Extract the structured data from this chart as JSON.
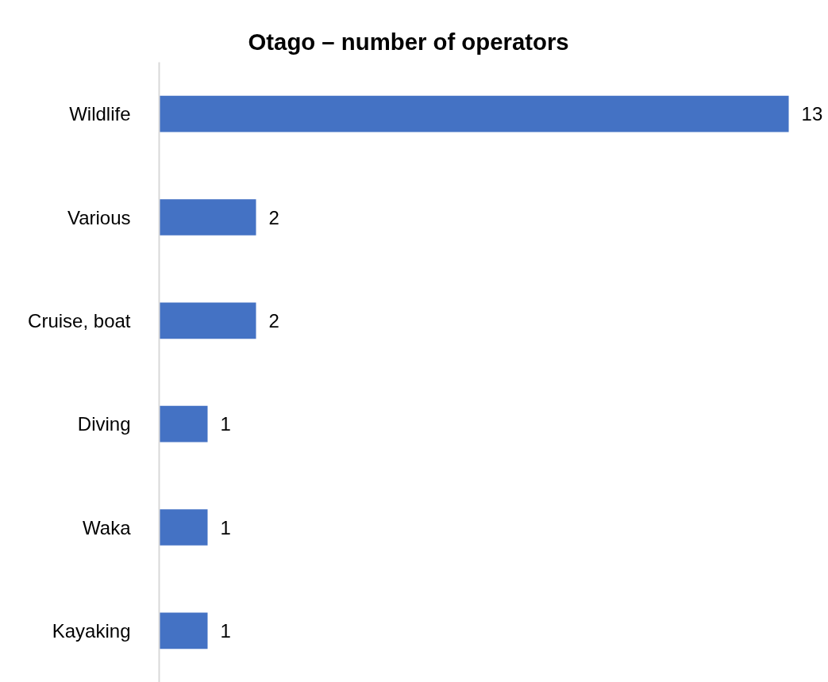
{
  "chart_data": {
    "type": "bar",
    "orientation": "horizontal",
    "title": "Otago – number of operators",
    "categories": [
      "Wildlife",
      "Various",
      "Cruise, boat",
      "Diving",
      "Waka",
      "Kayaking"
    ],
    "values": [
      13,
      2,
      2,
      1,
      1,
      1
    ],
    "color": "#4472c4",
    "data_labels": true,
    "tick_labels": "y"
  }
}
